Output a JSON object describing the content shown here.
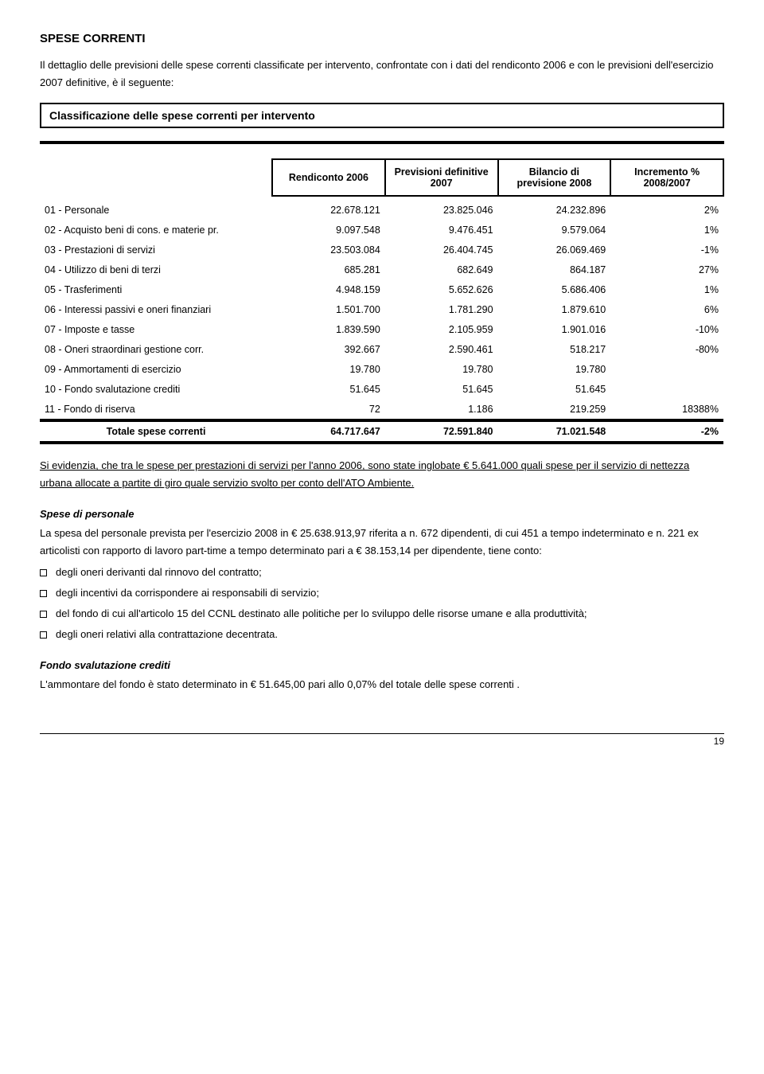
{
  "title": "SPESE CORRENTI",
  "intro": "Il dettaglio delle previsioni delle spese correnti classificate per  intervento, confrontate con i dati del rendiconto 2006 e con le previsioni dell'esercizio 2007 definitive, è il seguente:",
  "subtitle": "Classificazione delle spese correnti per intervento",
  "headers": {
    "c1": "Rendiconto 2006",
    "c2": "Previsioni definitive 2007",
    "c3": "Bilancio di previsione 2008",
    "c4": "Incremento % 2008/2007"
  },
  "rows": [
    {
      "label": "01 - Personale",
      "v1": "22.678.121",
      "v2": "23.825.046",
      "v3": "24.232.896",
      "v4": "2%"
    },
    {
      "label": "02 - Acquisto beni di cons. e materie pr.",
      "v1": "9.097.548",
      "v2": "9.476.451",
      "v3": "9.579.064",
      "v4": "1%"
    },
    {
      "label": "03 - Prestazioni di servizi",
      "v1": "23.503.084",
      "v2": "26.404.745",
      "v3": "26.069.469",
      "v4": "-1%"
    },
    {
      "label": "04 - Utilizzo di beni di terzi",
      "v1": "685.281",
      "v2": "682.649",
      "v3": "864.187",
      "v4": "27%"
    },
    {
      "label": "05 - Trasferimenti",
      "v1": "4.948.159",
      "v2": "5.652.626",
      "v3": "5.686.406",
      "v4": "1%"
    },
    {
      "label": "06 - Interessi passivi e oneri finanziari",
      "v1": "1.501.700",
      "v2": "1.781.290",
      "v3": "1.879.610",
      "v4": "6%"
    },
    {
      "label": "07 - Imposte e tasse",
      "v1": "1.839.590",
      "v2": "2.105.959",
      "v3": "1.901.016",
      "v4": "-10%"
    },
    {
      "label": "08 - Oneri straordinari gestione corr.",
      "v1": "392.667",
      "v2": "2.590.461",
      "v3": "518.217",
      "v4": "-80%"
    },
    {
      "label": "09 - Ammortamenti di esercizio",
      "v1": "19.780",
      "v2": "19.780",
      "v3": "19.780",
      "v4": ""
    },
    {
      "label": "10 - Fondo svalutazione crediti",
      "v1": "51.645",
      "v2": "51.645",
      "v3": "51.645",
      "v4": ""
    },
    {
      "label": "11 - Fondo di riserva",
      "v1": "72",
      "v2": "1.186",
      "v3": "219.259",
      "v4": "18388%"
    }
  ],
  "total": {
    "label": "Totale spese correnti",
    "v1": "64.717.647",
    "v2": "72.591.840",
    "v3": "71.021.548",
    "v4": "-2%"
  },
  "note1a": "Si evidenzia, che tra le spese per prestazioni di servizi per l'anno 2006, sono state inglobate € 5.641.000 quali spese per il servizio di nettezza urbana allocate a partite di giro quale servizio svolto per conto dell'ATO Ambiente.",
  "sec1_head": "Spese di personale",
  "sec1_p1": "La spesa del personale prevista per l'esercizio 2008 in € 25.638.913,97 riferita a n. 672 dipendenti, di cui 451 a tempo indeterminato e n. 221 ex articolisti con rapporto di lavoro part-time a tempo determinato pari a €  38.153,14  per dipendente, tiene conto:",
  "sec1_items": [
    "degli oneri derivanti dal rinnovo del contratto;",
    "degli incentivi da corrispondere ai responsabili di servizio;",
    "del fondo di cui all'articolo 15 del CCNL destinato alle politiche per lo sviluppo delle risorse umane e alla produttività;",
    "degli oneri relativi alla contrattazione decentrata."
  ],
  "sec2_head": "Fondo svalutazione crediti",
  "sec2_p": "L'ammontare del fondo è stato determinato in  € 51.645,00 pari allo 0,07% del totale delle spese correnti .",
  "page_num": "19"
}
